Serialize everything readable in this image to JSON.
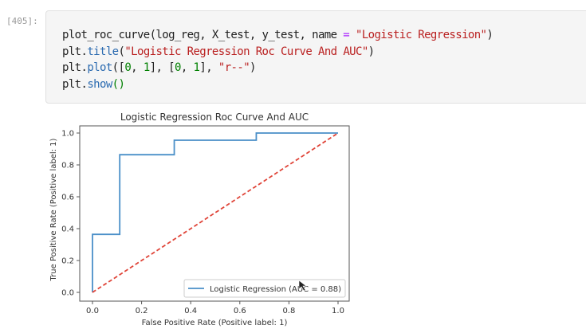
{
  "cell": {
    "prompt": "[405]:",
    "code_lines": [
      [
        {
          "t": "plot_roc_curve(log_reg, X_test, y_test, name ",
          "c": ""
        },
        {
          "t": "=",
          "c": "op"
        },
        {
          "t": " ",
          "c": ""
        },
        {
          "t": "\"Logistic Regression\"",
          "c": "str"
        },
        {
          "t": ")",
          "c": ""
        }
      ],
      [
        {
          "t": "plt.",
          "c": ""
        },
        {
          "t": "title",
          "c": "fn"
        },
        {
          "t": "(",
          "c": ""
        },
        {
          "t": "\"Logistic Regression Roc Curve And AUC\"",
          "c": "str"
        },
        {
          "t": ")",
          "c": ""
        }
      ],
      [
        {
          "t": "plt.",
          "c": ""
        },
        {
          "t": "plot",
          "c": "fn"
        },
        {
          "t": "([",
          "c": ""
        },
        {
          "t": "0",
          "c": "num"
        },
        {
          "t": ", ",
          "c": ""
        },
        {
          "t": "1",
          "c": "num"
        },
        {
          "t": "], [",
          "c": ""
        },
        {
          "t": "0",
          "c": "num"
        },
        {
          "t": ", ",
          "c": ""
        },
        {
          "t": "1",
          "c": "num"
        },
        {
          "t": "], ",
          "c": ""
        },
        {
          "t": "\"r--\"",
          "c": "str"
        },
        {
          "t": ")",
          "c": ""
        }
      ],
      [
        {
          "t": "plt.",
          "c": ""
        },
        {
          "t": "show",
          "c": "fn"
        },
        {
          "t": "()",
          "c": "num"
        }
      ]
    ]
  },
  "chart_data": {
    "type": "line",
    "title": "Logistic Regression Roc Curve And AUC",
    "xlabel": "False Positive Rate (Positive label: 1)",
    "ylabel": "True Positive Rate (Positive label: 1)",
    "xlim": [
      0,
      1
    ],
    "ylim": [
      0,
      1
    ],
    "xticks": [
      "0.0",
      "0.2",
      "0.4",
      "0.6",
      "0.8",
      "1.0"
    ],
    "yticks": [
      "0.0",
      "0.2",
      "0.4",
      "0.6",
      "0.8",
      "1.0"
    ],
    "grid": false,
    "legend_position": "bottom-right",
    "series": [
      {
        "name": "Logistic Regression (AUC = 0.88)",
        "color": "#4a8fc8",
        "style": "solid",
        "x": [
          0,
          0,
          0.111,
          0.111,
          0.333,
          0.333,
          0.667,
          0.667,
          1
        ],
        "y": [
          0,
          0.364,
          0.364,
          0.864,
          0.864,
          0.955,
          0.955,
          1,
          1
        ]
      },
      {
        "color": "#e0463a",
        "style": "dashed",
        "x": [
          0,
          1
        ],
        "y": [
          0,
          1
        ]
      }
    ]
  }
}
